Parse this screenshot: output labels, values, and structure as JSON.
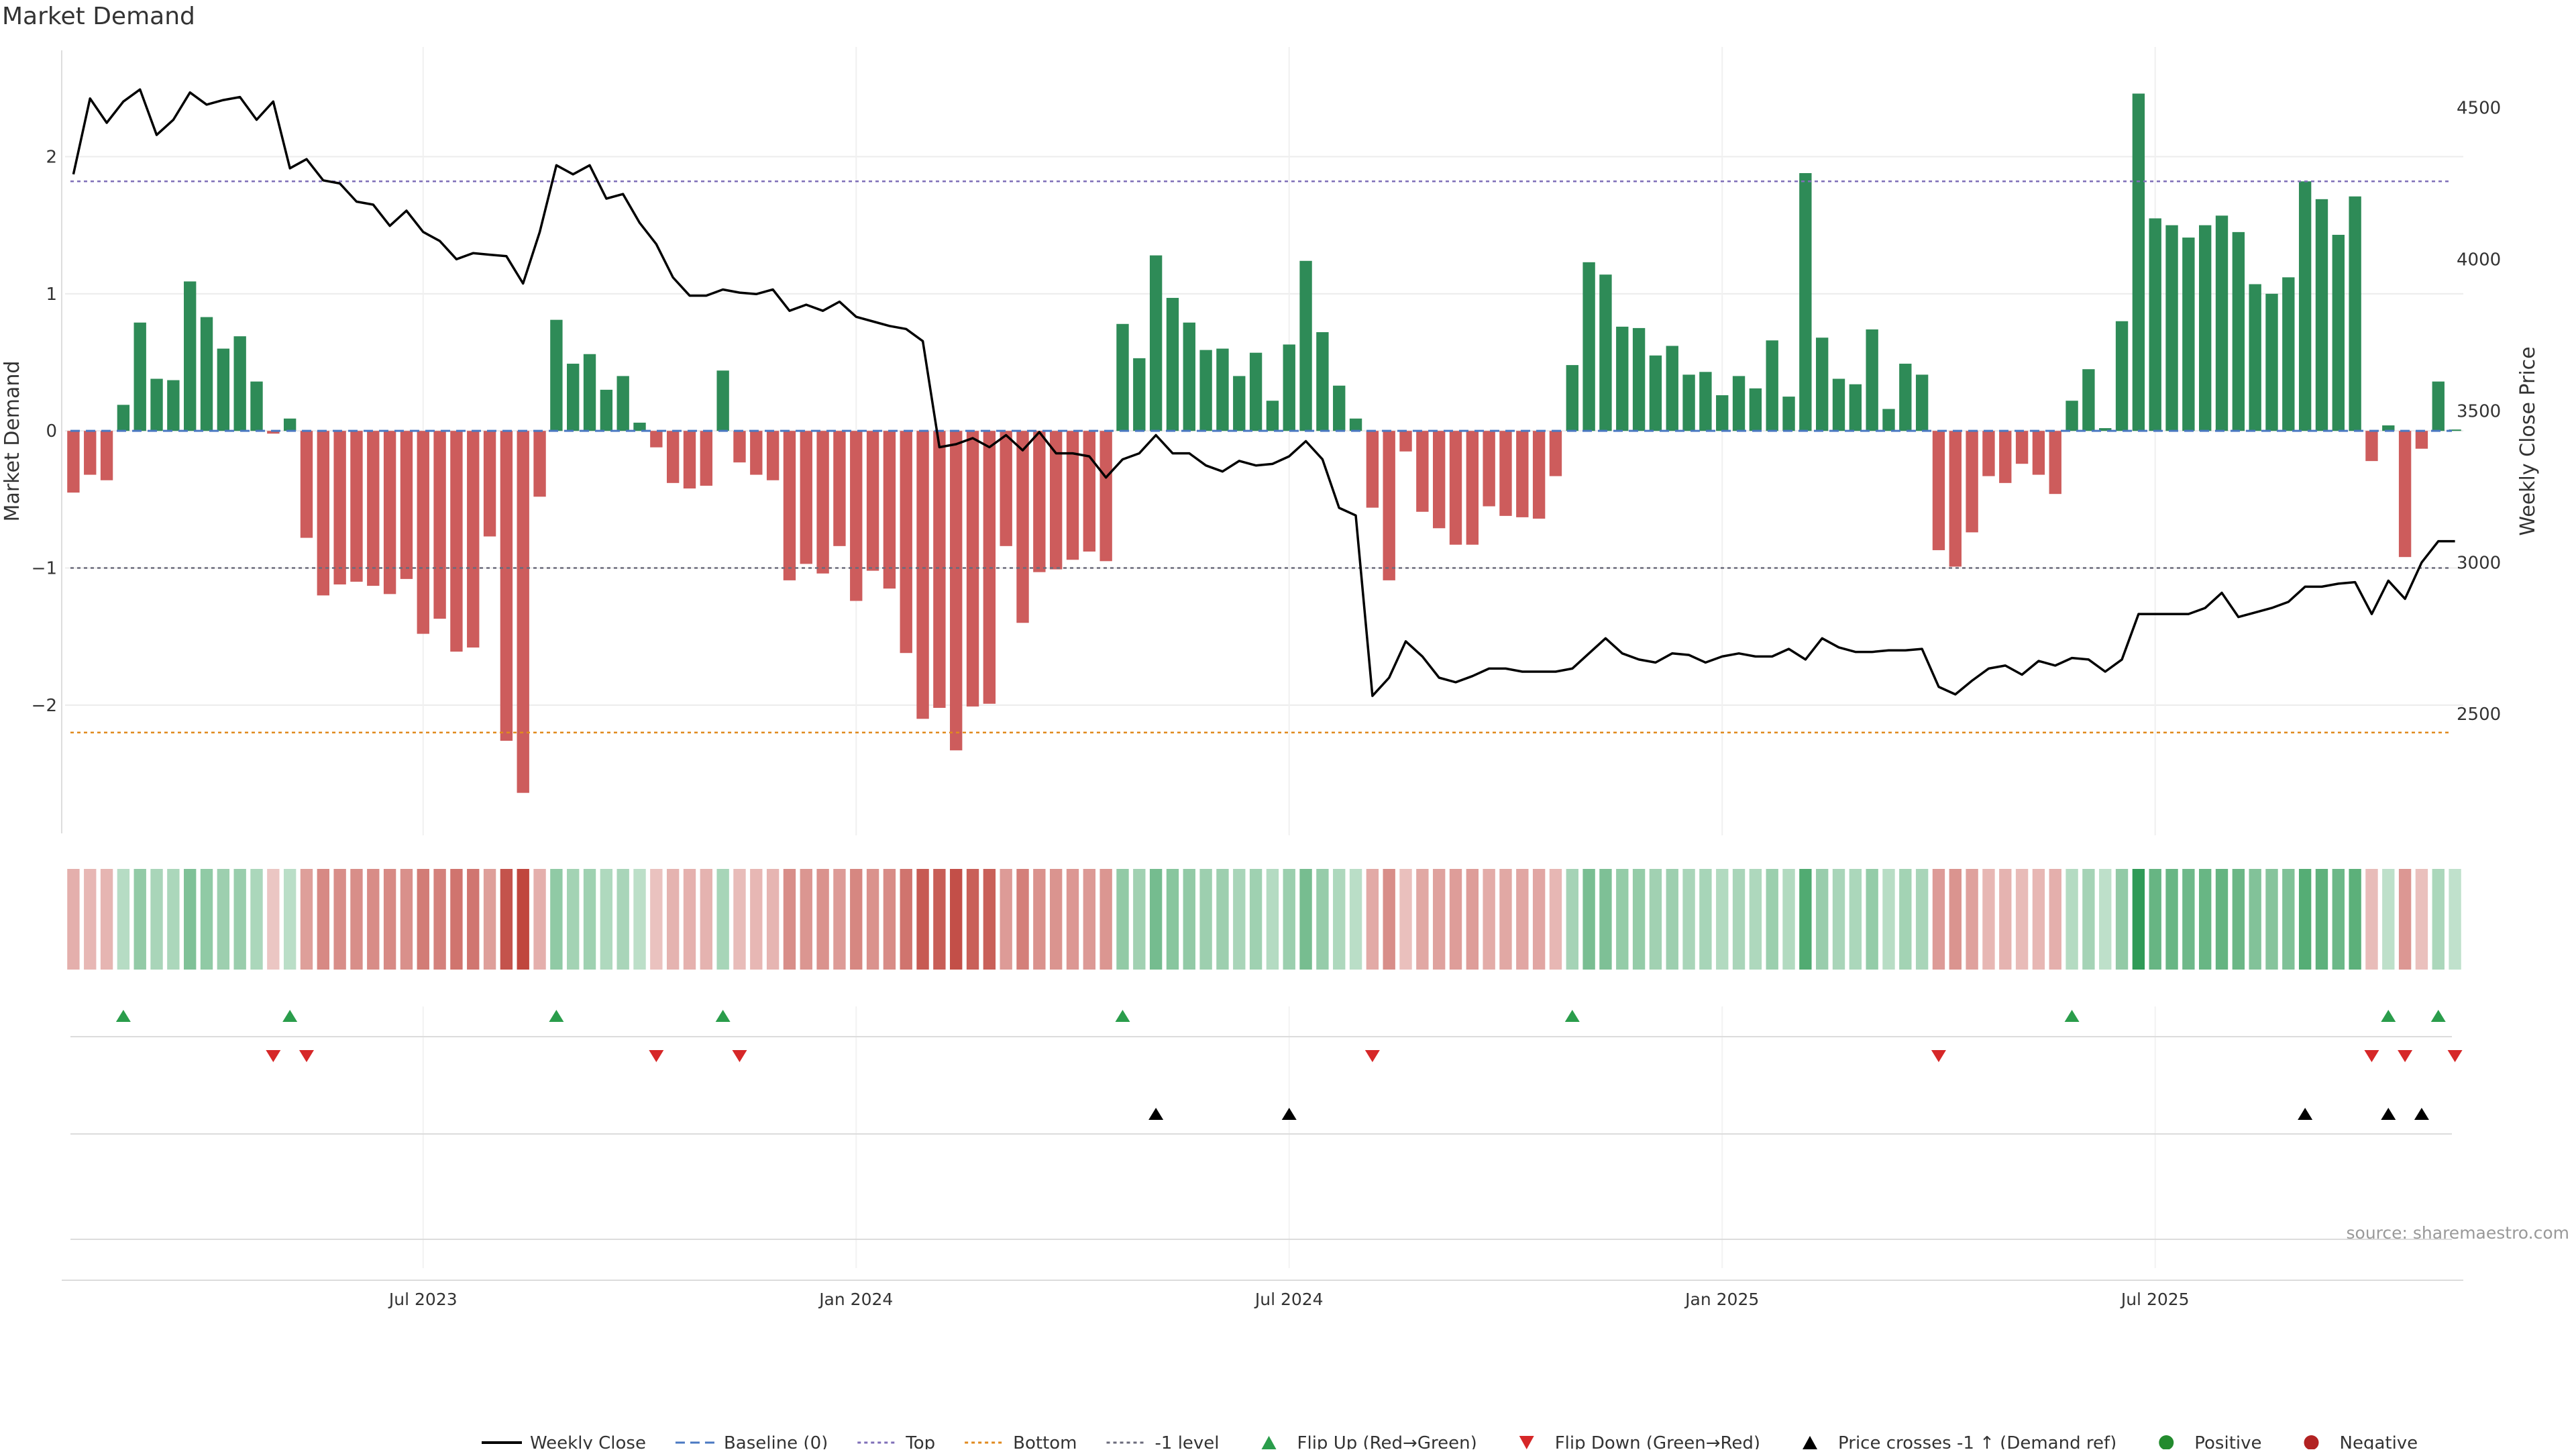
{
  "chart_data": {
    "type": "bar",
    "title": "Market Demand",
    "ylabel": "Market Demand",
    "y2label": "Weekly Close Price",
    "xlabel": "",
    "ylim": [
      -2.95,
      2.8
    ],
    "y2lim": [
      2100,
      4700
    ],
    "yticks": [
      2,
      1,
      0,
      -1,
      -2
    ],
    "y2ticks": [
      4500,
      4000,
      3500,
      3000,
      2500
    ],
    "xticks": [
      {
        "index": 21,
        "label": "Jul 2023"
      },
      {
        "index": 47,
        "label": "Jan 2024"
      },
      {
        "index": 73,
        "label": "Jul 2024"
      },
      {
        "index": 99,
        "label": "Jan 2025"
      },
      {
        "index": 125,
        "label": "Jul 2025"
      }
    ],
    "reference_lines": [
      {
        "name": "Top",
        "value": 1.82,
        "color": "#7f6fb8",
        "dash": "dotted"
      },
      {
        "name": "-1 level",
        "value": -1.0,
        "color": "#6b6b7b",
        "dash": "dotted"
      },
      {
        "name": "Bottom",
        "value": -2.2,
        "color": "#e08a1e",
        "dash": "dotted"
      },
      {
        "name": "Baseline (0)",
        "value": 0,
        "color": "#4a78c2",
        "dash": "dashed"
      }
    ],
    "series": [
      {
        "name": "Market Demand",
        "kind": "bar",
        "positive_color": "#2e8b57",
        "negative_color": "#cd5c5c",
        "values": [
          -0.45,
          -0.32,
          -0.36,
          0.19,
          0.79,
          0.38,
          0.37,
          1.09,
          0.83,
          0.6,
          0.69,
          0.36,
          -0.02,
          0.09,
          -0.78,
          -1.2,
          -1.12,
          -1.1,
          -1.13,
          -1.19,
          -1.08,
          -1.48,
          -1.37,
          -1.61,
          -1.58,
          -0.77,
          -2.26,
          -2.64,
          -0.48,
          0.81,
          0.49,
          0.56,
          0.3,
          0.4,
          0.06,
          -0.12,
          -0.38,
          -0.42,
          -0.4,
          0.44,
          -0.23,
          -0.32,
          -0.36,
          -1.09,
          -0.97,
          -1.04,
          -0.84,
          -1.24,
          -1.02,
          -1.15,
          -1.62,
          -2.1,
          -2.02,
          -2.33,
          -2.01,
          -1.99,
          -0.84,
          -1.4,
          -1.03,
          -1.01,
          -0.94,
          -0.88,
          -0.95,
          0.78,
          0.53,
          1.28,
          0.97,
          0.79,
          0.59,
          0.6,
          0.4,
          0.57,
          0.22,
          0.63,
          1.24,
          0.72,
          0.33,
          0.09,
          -0.56,
          -1.09,
          -0.15,
          -0.59,
          -0.71,
          -0.83,
          -0.83,
          -0.55,
          -0.62,
          -0.63,
          -0.64,
          -0.33,
          0.48,
          1.23,
          1.14,
          0.76,
          0.75,
          0.55,
          0.62,
          0.41,
          0.43,
          0.26,
          0.4,
          0.31,
          0.66,
          0.25,
          1.88,
          0.68,
          0.38,
          0.34,
          0.74,
          0.16,
          0.49,
          0.41,
          -0.87,
          -0.99,
          -0.74,
          -0.33,
          -0.38,
          -0.24,
          -0.32,
          -0.46,
          0.22,
          0.45,
          0.02,
          0.8,
          2.46,
          1.55,
          1.5,
          1.41,
          1.5,
          1.57,
          1.45,
          1.07,
          1.0,
          1.12,
          1.82,
          1.69,
          1.43,
          1.71,
          -0.22,
          0.04,
          -0.92,
          -0.13,
          0.36,
          0.01
        ]
      },
      {
        "name": "Weekly Close",
        "kind": "line",
        "axis": "right",
        "color": "#000000",
        "values": [
          4280,
          4530,
          4450,
          4520,
          4560,
          4410,
          4460,
          4550,
          4510,
          4525,
          4535,
          4460,
          4520,
          4300,
          4330,
          4260,
          4250,
          4190,
          4180,
          4110,
          4160,
          4090,
          4060,
          4000,
          4020,
          4015,
          4010,
          3920,
          4090,
          4310,
          4280,
          4310,
          4200,
          4215,
          4120,
          4050,
          3940,
          3880,
          3880,
          3900,
          3890,
          3885,
          3900,
          3830,
          3850,
          3830,
          3860,
          3810,
          3795,
          3780,
          3770,
          3730,
          3380,
          3390,
          3410,
          3380,
          3420,
          3370,
          3430,
          3360,
          3360,
          3350,
          3280,
          3340,
          3360,
          3420,
          3360,
          3360,
          3320,
          3300,
          3335,
          3320,
          3325,
          3350,
          3400,
          3340,
          3180,
          3155,
          2560,
          2620,
          2740,
          2690,
          2620,
          2605,
          2625,
          2650,
          2650,
          2640,
          2640,
          2640,
          2650,
          2700,
          2750,
          2700,
          2680,
          2670,
          2700,
          2695,
          2670,
          2690,
          2700,
          2690,
          2690,
          2715,
          2680,
          2750,
          2720,
          2705,
          2705,
          2710,
          2710,
          2715,
          2590,
          2565,
          2610,
          2650,
          2660,
          2630,
          2675,
          2660,
          2685,
          2680,
          2640,
          2680,
          2830,
          2830,
          2830,
          2830,
          2850,
          2900,
          2820,
          2835,
          2850,
          2870,
          2920,
          2920,
          2930,
          2935,
          2830,
          2940,
          2880,
          3000,
          3070,
          3070
        ]
      }
    ],
    "bands": {
      "name": "Demand intensity heat strip",
      "values_ref": "Market Demand",
      "note": "one cell per week, shade follows Market Demand sign and magnitude"
    },
    "events": {
      "flip_up_indices": [
        3,
        13,
        29,
        39,
        63,
        90,
        120,
        139,
        142
      ],
      "flip_down_indices": [
        12,
        14,
        35,
        40,
        78,
        112,
        138,
        140,
        143
      ],
      "price_cross_indices": [
        65,
        73,
        134,
        139,
        141
      ]
    },
    "legend": {
      "placement": "bottom-center",
      "entries": [
        {
          "label": "Weekly Close",
          "symbol": "line",
          "color": "#000000"
        },
        {
          "label": "Baseline (0)",
          "symbol": "dashed",
          "color": "#4a78c2"
        },
        {
          "label": "Top",
          "symbol": "dotted",
          "color": "#7f6fb8"
        },
        {
          "label": "Bottom",
          "symbol": "dotted",
          "color": "#e08a1e"
        },
        {
          "label": "-1 level",
          "symbol": "dotted",
          "color": "#6b6b7b"
        },
        {
          "label": "Flip Up (Red→Green)",
          "symbol": "triangle-up",
          "color": "#2a9d4b"
        },
        {
          "label": "Flip Down (Green→Red)",
          "symbol": "triangle-down",
          "color": "#d62728"
        },
        {
          "label": "Price crosses -1 ↑ (Demand ref)",
          "symbol": "triangle-up",
          "color": "#000000"
        },
        {
          "label": "Positive",
          "symbol": "dot",
          "color": "#238b2e"
        },
        {
          "label": "Negative",
          "symbol": "dot",
          "color": "#b22222"
        }
      ]
    },
    "source_note": "source: sharemaestro.com"
  }
}
